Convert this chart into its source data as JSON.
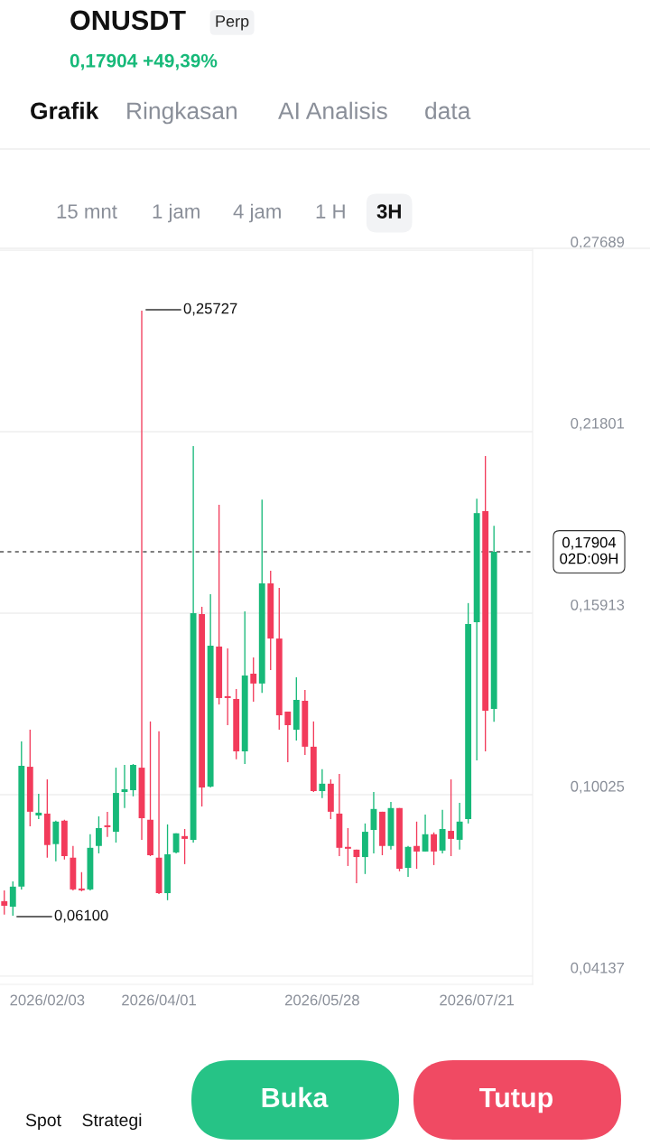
{
  "chart_data": {
    "type": "candlestick",
    "title": "ONUSDT",
    "subtitle": "0,17904 +49,39%",
    "categories": [
      null,
      null,
      null,
      null,
      null,
      "2026/02/03",
      null,
      null,
      null,
      null,
      null,
      null,
      null,
      null,
      null,
      null,
      null,
      null,
      "2026/04/01",
      null,
      null,
      null,
      null,
      null,
      null,
      null,
      null,
      null,
      null,
      null,
      null,
      null,
      null,
      null,
      null,
      null,
      null,
      "2026/05/28",
      null,
      null,
      null,
      null,
      null,
      null,
      null,
      null,
      null,
      null,
      null,
      null,
      null,
      null,
      null,
      null,
      null,
      "2026/07/21",
      null,
      null
    ],
    "ohlc": [
      [
        0.0657,
        0.0692,
        0.0613,
        0.0642
      ],
      [
        0.0639,
        0.0721,
        0.061,
        0.0704
      ],
      [
        0.0704,
        0.1175,
        0.0695,
        0.1096
      ],
      [
        0.1093,
        0.1213,
        0.09,
        0.0947
      ],
      [
        0.0935,
        0.1005,
        0.0923,
        0.0944
      ],
      [
        0.0941,
        0.1052,
        0.0798,
        0.0839
      ],
      [
        0.0842,
        0.0918,
        0.0786,
        0.0915
      ],
      [
        0.0918,
        0.0921,
        0.0792,
        0.0803
      ],
      [
        0.0798,
        0.0836,
        0.0692,
        0.0695
      ],
      [
        0.0698,
        0.0751,
        0.0689,
        0.0692
      ],
      [
        0.0695,
        0.0874,
        0.0692,
        0.083
      ],
      [
        0.0836,
        0.0932,
        0.0812,
        0.0894
      ],
      [
        0.0903,
        0.0947,
        0.0865,
        0.0897
      ],
      [
        0.0882,
        0.109,
        0.0847,
        0.1008
      ],
      [
        0.1011,
        0.1099,
        0.0959,
        0.102
      ],
      [
        0.1017,
        0.1102,
        0.0997,
        0.1099
      ],
      [
        0.109,
        0.25727,
        0.0856,
        0.0926
      ],
      [
        0.0921,
        0.124,
        0.0803,
        0.0806
      ],
      [
        0.0798,
        0.1208,
        0.068,
        0.0683
      ],
      [
        0.0683,
        0.0906,
        0.066,
        0.0809
      ],
      [
        0.0815,
        0.0877,
        0.0812,
        0.0877
      ],
      [
        0.0868,
        0.0891,
        0.0777,
        0.0859
      ],
      [
        0.0856,
        0.2133,
        0.0847,
        0.1591
      ],
      [
        0.1588,
        0.1612,
        0.0964,
        0.1026
      ],
      [
        0.1029,
        0.1653,
        0.1026,
        0.1486
      ],
      [
        0.1483,
        0.1943,
        0.1295,
        0.1316
      ],
      [
        0.1322,
        0.1477,
        0.1228,
        0.1316
      ],
      [
        0.1313,
        0.1345,
        0.1117,
        0.1143
      ],
      [
        0.1143,
        0.1597,
        0.1102,
        0.1389
      ],
      [
        0.1395,
        0.1448,
        0.1304,
        0.1363
      ],
      [
        0.1363,
        0.196,
        0.1333,
        0.1688
      ],
      [
        0.1688,
        0.1729,
        0.1407,
        0.1509
      ],
      [
        0.1509,
        0.1673,
        0.1213,
        0.126
      ],
      [
        0.1272,
        0.1272,
        0.1108,
        0.1228
      ],
      [
        0.1213,
        0.1383,
        0.1178,
        0.131
      ],
      [
        0.1307,
        0.1342,
        0.1131,
        0.1158
      ],
      [
        0.1158,
        0.124,
        0.1011,
        0.1014
      ],
      [
        0.1014,
        0.1085,
        0.0991,
        0.1038
      ],
      [
        0.1038,
        0.1052,
        0.0923,
        0.0947
      ],
      [
        0.0941,
        0.107,
        0.0803,
        0.083
      ],
      [
        0.0833,
        0.0894,
        0.0771,
        0.0827
      ],
      [
        0.0824,
        0.0824,
        0.0715,
        0.08
      ],
      [
        0.08,
        0.0909,
        0.0745,
        0.0882
      ],
      [
        0.0888,
        0.1011,
        0.0812,
        0.0956
      ],
      [
        0.0947,
        0.0947,
        0.0806,
        0.0836
      ],
      [
        0.0836,
        0.0979,
        0.0824,
        0.0959
      ],
      [
        0.0959,
        0.0959,
        0.0754,
        0.0762
      ],
      [
        0.0765,
        0.0836,
        0.0736,
        0.0833
      ],
      [
        0.0836,
        0.0915,
        0.0762,
        0.0818
      ],
      [
        0.0818,
        0.0938,
        0.0818,
        0.0874
      ],
      [
        0.0874,
        0.088,
        0.0774,
        0.0818
      ],
      [
        0.0821,
        0.0953,
        0.0812,
        0.0891
      ],
      [
        0.0885,
        0.1052,
        0.0803,
        0.0859
      ],
      [
        0.0856,
        0.0976,
        0.0824,
        0.0915
      ],
      [
        0.0923,
        0.1624,
        0.0909,
        0.1556
      ],
      [
        0.1562,
        0.1963,
        0.1114,
        0.1916
      ],
      [
        0.1922,
        0.2101,
        0.1143,
        0.1275
      ],
      [
        0.1281,
        0.1875,
        0.1239,
        0.17904
      ]
    ],
    "colors": [
      "#f23b5b",
      "#17b979",
      "#17b979",
      "#f23b5b",
      "#17b979",
      "#f23b5b",
      "#17b979",
      "#f23b5b",
      "#f23b5b",
      "#f23b5b",
      "#17b979",
      "#17b979",
      "#f23b5b",
      "#17b979",
      "#17b979",
      "#17b979",
      "#f23b5b",
      "#f23b5b",
      "#f23b5b",
      "#17b979",
      "#17b979",
      "#f23b5b",
      "#17b979",
      "#f23b5b",
      "#17b979",
      "#f23b5b",
      "#f23b5b",
      "#f23b5b",
      "#17b979",
      "#f23b5b",
      "#17b979",
      "#f23b5b",
      "#f23b5b",
      "#f23b5b",
      "#17b979",
      "#f23b5b",
      "#f23b5b",
      "#17b979",
      "#f23b5b",
      "#f23b5b",
      "#f23b5b",
      "#f23b5b",
      "#17b979",
      "#17b979",
      "#f23b5b",
      "#17b979",
      "#f23b5b",
      "#17b979",
      "#f23b5b",
      "#17b979",
      "#f23b5b",
      "#17b979",
      "#f23b5b",
      "#17b979",
      "#17b979",
      "#17b979",
      "#f23b5b",
      "#17b979"
    ],
    "ylim": [
      0.0387,
      0.2775
    ],
    "yticks": [
      {
        "value": 0.04137,
        "label": "0,04137"
      },
      {
        "value": 0.10025,
        "label": "0,10025"
      },
      {
        "value": 0.15913,
        "label": "0,15913"
      },
      {
        "value": 0.21801,
        "label": "0,21801"
      },
      {
        "value": 0.27689,
        "label": "0,27689"
      }
    ],
    "grid": "y",
    "ref_lines": [
      {
        "axis": "y",
        "value": 0.17904,
        "label": "0,17904\n02D:09H",
        "line_style": "dashed"
      }
    ],
    "annotations": [
      "0,25727",
      "0,06100",
      "Perp",
      "Grafik",
      "Ringkasan",
      "AI Analisis",
      "data",
      "15 mnt",
      "1 jam",
      "4 jam",
      "1 H",
      "3H",
      "Spot",
      "Strategi",
      "Buka",
      "Tutup"
    ]
  }
}
